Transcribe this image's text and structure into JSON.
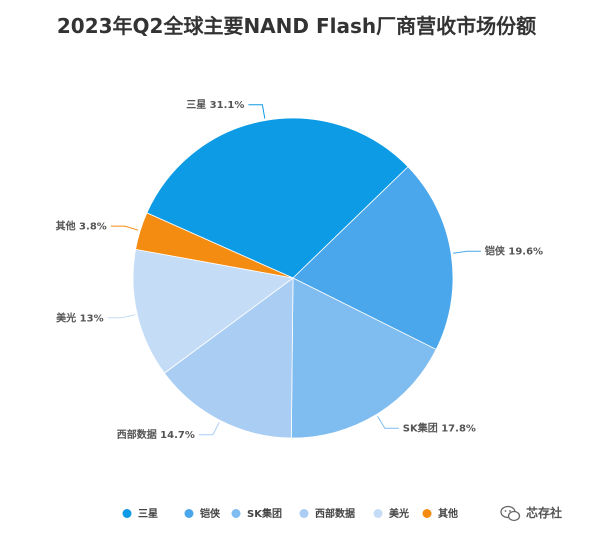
{
  "chart_data": {
    "type": "pie",
    "title": "2023年Q2全球主要NAND Flash厂商营收市场份额",
    "categories": [
      "三星",
      "铠侠",
      "SK集团",
      "西部数据",
      "美光",
      "其他"
    ],
    "values": [
      31.1,
      19.6,
      17.8,
      14.7,
      13,
      3.8
    ],
    "labels": [
      "三星 31.1%",
      "铠侠 19.6%",
      "SK集团 17.8%",
      "西部数据 14.7%",
      "美光 13%",
      "其他 3.8%"
    ],
    "colors": [
      "#0c9be4",
      "#4ba7ec",
      "#7fbcf0",
      "#a9cdf3",
      "#c4dcf6",
      "#f48c12"
    ],
    "legend": "bottom"
  },
  "watermark": {
    "text": "芯存社",
    "icon": "wechat-icon"
  }
}
